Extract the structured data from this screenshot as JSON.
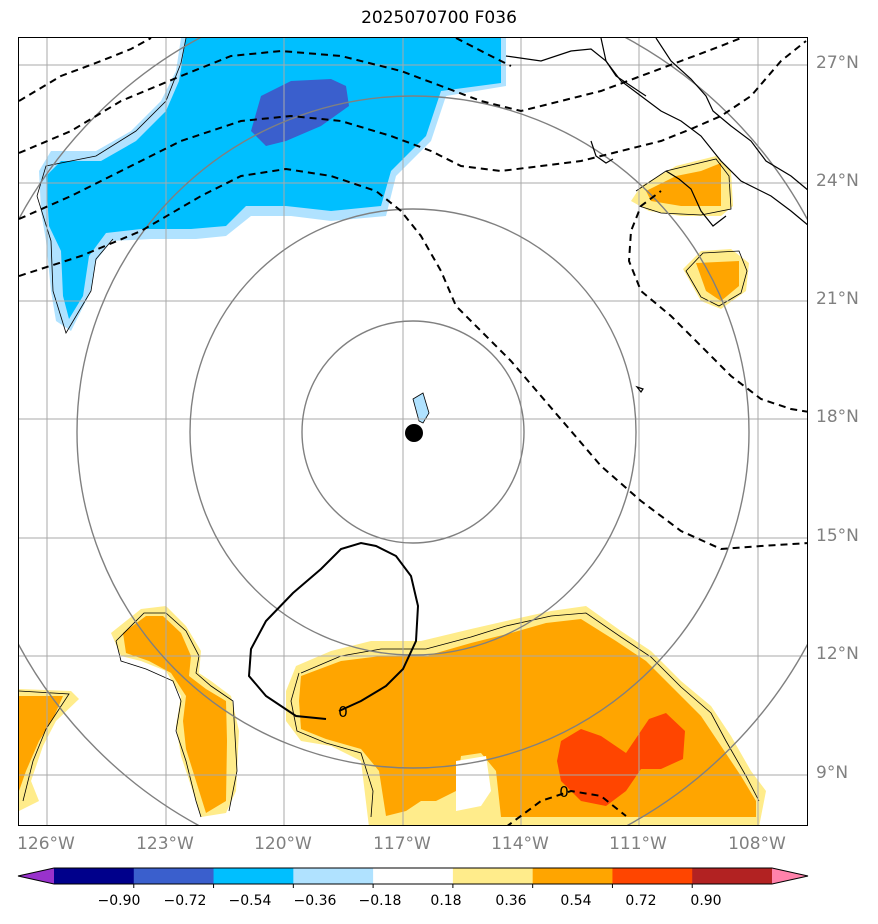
{
  "title": "2025070700 F036",
  "lat_labels": [
    "27°N",
    "24°N",
    "21°N",
    "18°N",
    "15°N",
    "12°N",
    "9°N"
  ],
  "lon_labels": [
    "126°W",
    "123°W",
    "120°W",
    "117°W",
    "114°W",
    "111°W",
    "108°W"
  ],
  "contour_labels": [
    "0",
    "0"
  ],
  "colorbar": {
    "ticks": [
      "−0.90",
      "−0.72",
      "−0.54",
      "−0.36",
      "−0.18",
      "0.18",
      "0.36",
      "0.54",
      "0.72",
      "0.90"
    ],
    "colors": [
      "#9932cc",
      "#00008b",
      "#3a5fcd",
      "#00bfff",
      "#b0e2ff",
      "#ffffff",
      "#ffec8b",
      "#ffa500",
      "#ff4500",
      "#b22222",
      "#ff82ab"
    ]
  },
  "map_colors": {
    "blue_light": "#b0e2ff",
    "blue_mid": "#00bfff",
    "blue_dark": "#3a5fcd",
    "yellow": "#ffec8b",
    "orange": "#ffa500",
    "red_orange": "#ff4500"
  }
}
